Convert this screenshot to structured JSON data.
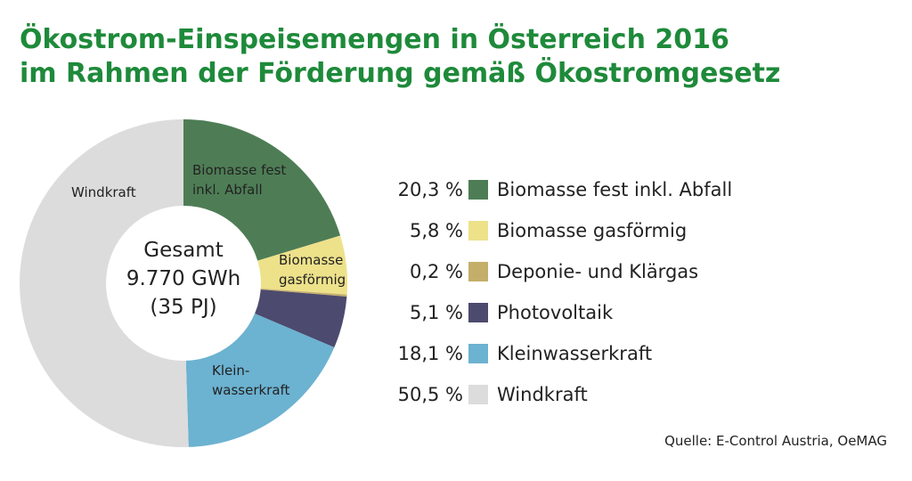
{
  "chart_data": {
    "type": "pie",
    "title_lines": [
      "Ökostrom-Einspeisemengen in Österreich 2016",
      "im Rahmen der Förderung gemäß Ökostromgesetz"
    ],
    "center_label": [
      "Gesamt",
      "9.770 GWh",
      "(35 PJ)"
    ],
    "slices": [
      {
        "name": "Biomasse fest inkl. Abfall",
        "value": 20.3,
        "percent_label": "20,3 %",
        "color": "#4e7d55",
        "slice_label": [
          "Biomasse fest",
          "inkl. Abfall"
        ]
      },
      {
        "name": "Biomasse gasförmig",
        "value": 5.8,
        "percent_label": "5,8 %",
        "color": "#ede18a",
        "slice_label": [
          "Biomasse",
          "gasförmig"
        ]
      },
      {
        "name": "Deponie- und Klärgas",
        "value": 0.2,
        "percent_label": "0,2 %",
        "color": "#c4ae6a",
        "slice_label": []
      },
      {
        "name": "Photovoltaik",
        "value": 5.1,
        "percent_label": "5,1 %",
        "color": "#4c4a6e",
        "slice_label": []
      },
      {
        "name": "Kleinwasserkraft",
        "value": 18.1,
        "percent_label": "18,1 %",
        "color": "#6cb2d1",
        "slice_label": [
          "Klein-",
          "wasserkraft"
        ]
      },
      {
        "name": "Windkraft",
        "value": 50.5,
        "percent_label": "50,5 %",
        "color": "#dcdcdc",
        "slice_label": [
          "Windkraft"
        ]
      }
    ],
    "legend_placement": "right",
    "source": "Quelle: E-Control Austria, OeMAG"
  }
}
